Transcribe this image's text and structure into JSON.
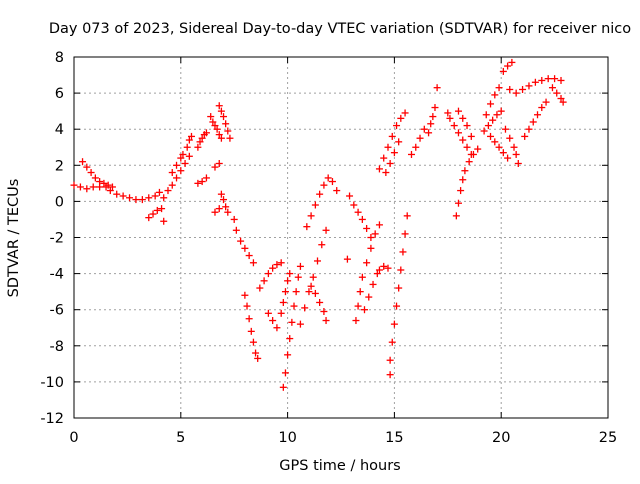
{
  "chart_data": {
    "type": "scatter",
    "title": "Day 073 of 2023, Sidereal Day-to-day VTEC variation (SDTVAR) for receiver nico",
    "xlabel": "GPS time / hours",
    "ylabel": "SDTVAR / TECUs",
    "xlim": [
      0,
      25
    ],
    "ylim": [
      -12,
      8
    ],
    "x_ticks": [
      0,
      5,
      10,
      15,
      20,
      25
    ],
    "y_ticks": [
      -12,
      -10,
      -8,
      -6,
      -4,
      -2,
      0,
      2,
      4,
      6,
      8
    ],
    "grid": true,
    "legend": "none",
    "marker": "+",
    "color": "#ff0000",
    "series": [
      {
        "points": [
          [
            0.0,
            0.9
          ],
          [
            0.3,
            0.8
          ],
          [
            0.6,
            0.7
          ],
          [
            0.9,
            0.8
          ],
          [
            1.2,
            0.8
          ],
          [
            1.5,
            0.8
          ],
          [
            1.7,
            0.6
          ],
          [
            0.4,
            2.2
          ],
          [
            0.6,
            1.9
          ],
          [
            0.8,
            1.6
          ],
          [
            1.0,
            1.3
          ],
          [
            1.2,
            1.1
          ],
          [
            1.4,
            1.0
          ],
          [
            1.6,
            0.9
          ],
          [
            1.8,
            0.8
          ],
          [
            2.0,
            0.4
          ],
          [
            2.3,
            0.3
          ],
          [
            2.6,
            0.2
          ],
          [
            2.9,
            0.1
          ],
          [
            3.2,
            0.1
          ],
          [
            3.5,
            0.2
          ],
          [
            3.8,
            0.3
          ],
          [
            4.0,
            0.5
          ],
          [
            3.5,
            -0.9
          ],
          [
            3.7,
            -0.7
          ],
          [
            3.9,
            -0.5
          ],
          [
            4.1,
            -0.4
          ],
          [
            4.2,
            -1.1
          ],
          [
            4.2,
            0.2
          ],
          [
            4.4,
            0.6
          ],
          [
            4.6,
            0.9
          ],
          [
            4.8,
            1.3
          ],
          [
            5.0,
            1.7
          ],
          [
            5.2,
            2.1
          ],
          [
            5.4,
            2.5
          ],
          [
            4.6,
            1.6
          ],
          [
            4.8,
            2.0
          ],
          [
            5.0,
            2.4
          ],
          [
            5.1,
            2.6
          ],
          [
            5.3,
            3.0
          ],
          [
            5.4,
            3.4
          ],
          [
            5.5,
            3.6
          ],
          [
            5.8,
            3.0
          ],
          [
            5.9,
            3.3
          ],
          [
            6.0,
            3.5
          ],
          [
            6.1,
            3.7
          ],
          [
            6.2,
            3.8
          ],
          [
            5.8,
            1.0
          ],
          [
            6.0,
            1.1
          ],
          [
            6.2,
            1.3
          ],
          [
            6.4,
            4.7
          ],
          [
            6.5,
            4.4
          ],
          [
            6.6,
            4.2
          ],
          [
            6.7,
            4.0
          ],
          [
            6.8,
            3.7
          ],
          [
            6.9,
            3.5
          ],
          [
            6.8,
            5.3
          ],
          [
            6.9,
            5.0
          ],
          [
            7.0,
            4.7
          ],
          [
            7.1,
            4.3
          ],
          [
            7.2,
            3.9
          ],
          [
            7.3,
            3.5
          ],
          [
            6.6,
            1.9
          ],
          [
            6.8,
            2.1
          ],
          [
            6.6,
            -0.6
          ],
          [
            6.8,
            -0.4
          ],
          [
            6.9,
            0.4
          ],
          [
            7.0,
            0.1
          ],
          [
            7.1,
            -0.3
          ],
          [
            7.2,
            -0.6
          ],
          [
            7.5,
            -1.0
          ],
          [
            7.6,
            -1.6
          ],
          [
            7.8,
            -2.2
          ],
          [
            8.0,
            -2.6
          ],
          [
            8.2,
            -3.0
          ],
          [
            8.4,
            -3.4
          ],
          [
            8.0,
            -5.2
          ],
          [
            8.1,
            -5.8
          ],
          [
            8.2,
            -6.5
          ],
          [
            8.3,
            -7.2
          ],
          [
            8.4,
            -7.8
          ],
          [
            8.5,
            -8.4
          ],
          [
            8.6,
            -8.7
          ],
          [
            8.7,
            -4.8
          ],
          [
            8.9,
            -4.4
          ],
          [
            9.1,
            -4.0
          ],
          [
            9.3,
            -3.7
          ],
          [
            9.5,
            -3.5
          ],
          [
            9.7,
            -3.4
          ],
          [
            9.1,
            -6.2
          ],
          [
            9.3,
            -6.6
          ],
          [
            9.5,
            -7.0
          ],
          [
            9.8,
            -10.3
          ],
          [
            9.9,
            -9.5
          ],
          [
            10.0,
            -8.5
          ],
          [
            10.1,
            -7.6
          ],
          [
            10.2,
            -6.7
          ],
          [
            10.3,
            -5.8
          ],
          [
            10.4,
            -5.0
          ],
          [
            10.5,
            -4.2
          ],
          [
            10.6,
            -3.6
          ],
          [
            9.7,
            -6.2
          ],
          [
            9.8,
            -5.6
          ],
          [
            9.9,
            -5.0
          ],
          [
            10.0,
            -4.4
          ],
          [
            10.1,
            -4.0
          ],
          [
            10.6,
            -6.8
          ],
          [
            10.8,
            -5.9
          ],
          [
            11.0,
            -5.0
          ],
          [
            11.2,
            -4.2
          ],
          [
            11.4,
            -3.3
          ],
          [
            11.6,
            -2.4
          ],
          [
            11.8,
            -1.6
          ],
          [
            10.9,
            -1.4
          ],
          [
            11.1,
            -0.8
          ],
          [
            11.3,
            -0.2
          ],
          [
            11.5,
            0.4
          ],
          [
            11.7,
            0.9
          ],
          [
            11.9,
            1.3
          ],
          [
            12.1,
            1.1
          ],
          [
            12.3,
            0.6
          ],
          [
            11.1,
            -4.7
          ],
          [
            11.3,
            -5.1
          ],
          [
            11.5,
            -5.6
          ],
          [
            11.7,
            -6.1
          ],
          [
            11.8,
            -6.6
          ],
          [
            12.9,
            0.3
          ],
          [
            13.1,
            -0.2
          ],
          [
            13.3,
            -0.6
          ],
          [
            13.5,
            -1.0
          ],
          [
            13.7,
            -1.5
          ],
          [
            13.9,
            -2.0
          ],
          [
            12.8,
            -3.2
          ],
          [
            13.2,
            -6.6
          ],
          [
            13.3,
            -5.8
          ],
          [
            13.4,
            -5.0
          ],
          [
            13.5,
            -4.2
          ],
          [
            13.7,
            -3.4
          ],
          [
            13.9,
            -2.6
          ],
          [
            14.1,
            -1.8
          ],
          [
            14.3,
            -1.3
          ],
          [
            13.6,
            -6.0
          ],
          [
            13.8,
            -5.3
          ],
          [
            14.0,
            -4.6
          ],
          [
            14.2,
            -4.0
          ],
          [
            14.3,
            -3.8
          ],
          [
            14.5,
            -3.6
          ],
          [
            14.7,
            -3.7
          ],
          [
            14.8,
            -9.6
          ],
          [
            14.8,
            -8.8
          ],
          [
            14.9,
            -7.8
          ],
          [
            15.0,
            -6.8
          ],
          [
            15.1,
            -5.8
          ],
          [
            15.2,
            -4.8
          ],
          [
            15.3,
            -3.8
          ],
          [
            15.4,
            -2.8
          ],
          [
            15.5,
            -1.8
          ],
          [
            15.6,
            -0.8
          ],
          [
            14.3,
            1.8
          ],
          [
            14.5,
            2.4
          ],
          [
            14.7,
            3.0
          ],
          [
            14.9,
            3.6
          ],
          [
            15.1,
            4.2
          ],
          [
            15.3,
            4.6
          ],
          [
            15.5,
            4.9
          ],
          [
            14.6,
            1.6
          ],
          [
            14.8,
            2.1
          ],
          [
            15.0,
            2.7
          ],
          [
            15.2,
            3.3
          ],
          [
            15.8,
            2.6
          ],
          [
            16.0,
            3.0
          ],
          [
            16.2,
            3.5
          ],
          [
            16.4,
            4.0
          ],
          [
            16.6,
            3.8
          ],
          [
            16.7,
            4.3
          ],
          [
            16.8,
            4.7
          ],
          [
            16.9,
            5.2
          ],
          [
            17.0,
            6.3
          ],
          [
            17.5,
            4.9
          ],
          [
            17.6,
            4.6
          ],
          [
            17.8,
            4.2
          ],
          [
            18.0,
            3.8
          ],
          [
            18.2,
            3.4
          ],
          [
            18.4,
            3.0
          ],
          [
            18.6,
            2.6
          ],
          [
            18.0,
            5.0
          ],
          [
            18.2,
            4.6
          ],
          [
            18.4,
            4.2
          ],
          [
            18.6,
            3.6
          ],
          [
            17.9,
            -0.8
          ],
          [
            18.0,
            -0.1
          ],
          [
            18.1,
            0.6
          ],
          [
            18.2,
            1.2
          ],
          [
            18.3,
            1.7
          ],
          [
            18.5,
            2.2
          ],
          [
            18.7,
            2.6
          ],
          [
            18.9,
            2.9
          ],
          [
            19.2,
            3.9
          ],
          [
            19.4,
            4.2
          ],
          [
            19.6,
            4.5
          ],
          [
            19.8,
            4.8
          ],
          [
            20.0,
            5.0
          ],
          [
            19.3,
            4.8
          ],
          [
            19.5,
            5.4
          ],
          [
            19.7,
            5.9
          ],
          [
            19.9,
            6.3
          ],
          [
            19.5,
            3.6
          ],
          [
            19.7,
            3.3
          ],
          [
            19.9,
            3.0
          ],
          [
            20.1,
            2.7
          ],
          [
            20.3,
            2.4
          ],
          [
            20.2,
            4.0
          ],
          [
            20.4,
            3.5
          ],
          [
            20.6,
            3.0
          ],
          [
            20.7,
            2.6
          ],
          [
            20.8,
            2.1
          ],
          [
            20.1,
            7.2
          ],
          [
            20.3,
            7.5
          ],
          [
            20.5,
            7.7
          ],
          [
            20.4,
            6.2
          ],
          [
            20.7,
            6.0
          ],
          [
            21.0,
            6.2
          ],
          [
            21.1,
            3.6
          ],
          [
            21.3,
            4.0
          ],
          [
            21.5,
            4.4
          ],
          [
            21.7,
            4.8
          ],
          [
            21.9,
            5.2
          ],
          [
            22.1,
            5.5
          ],
          [
            21.3,
            6.4
          ],
          [
            21.6,
            6.6
          ],
          [
            21.9,
            6.7
          ],
          [
            22.2,
            6.8
          ],
          [
            22.5,
            6.8
          ],
          [
            22.8,
            6.7
          ],
          [
            22.4,
            6.3
          ],
          [
            22.6,
            6.0
          ],
          [
            22.8,
            5.7
          ],
          [
            22.9,
            5.5
          ]
        ]
      }
    ]
  }
}
